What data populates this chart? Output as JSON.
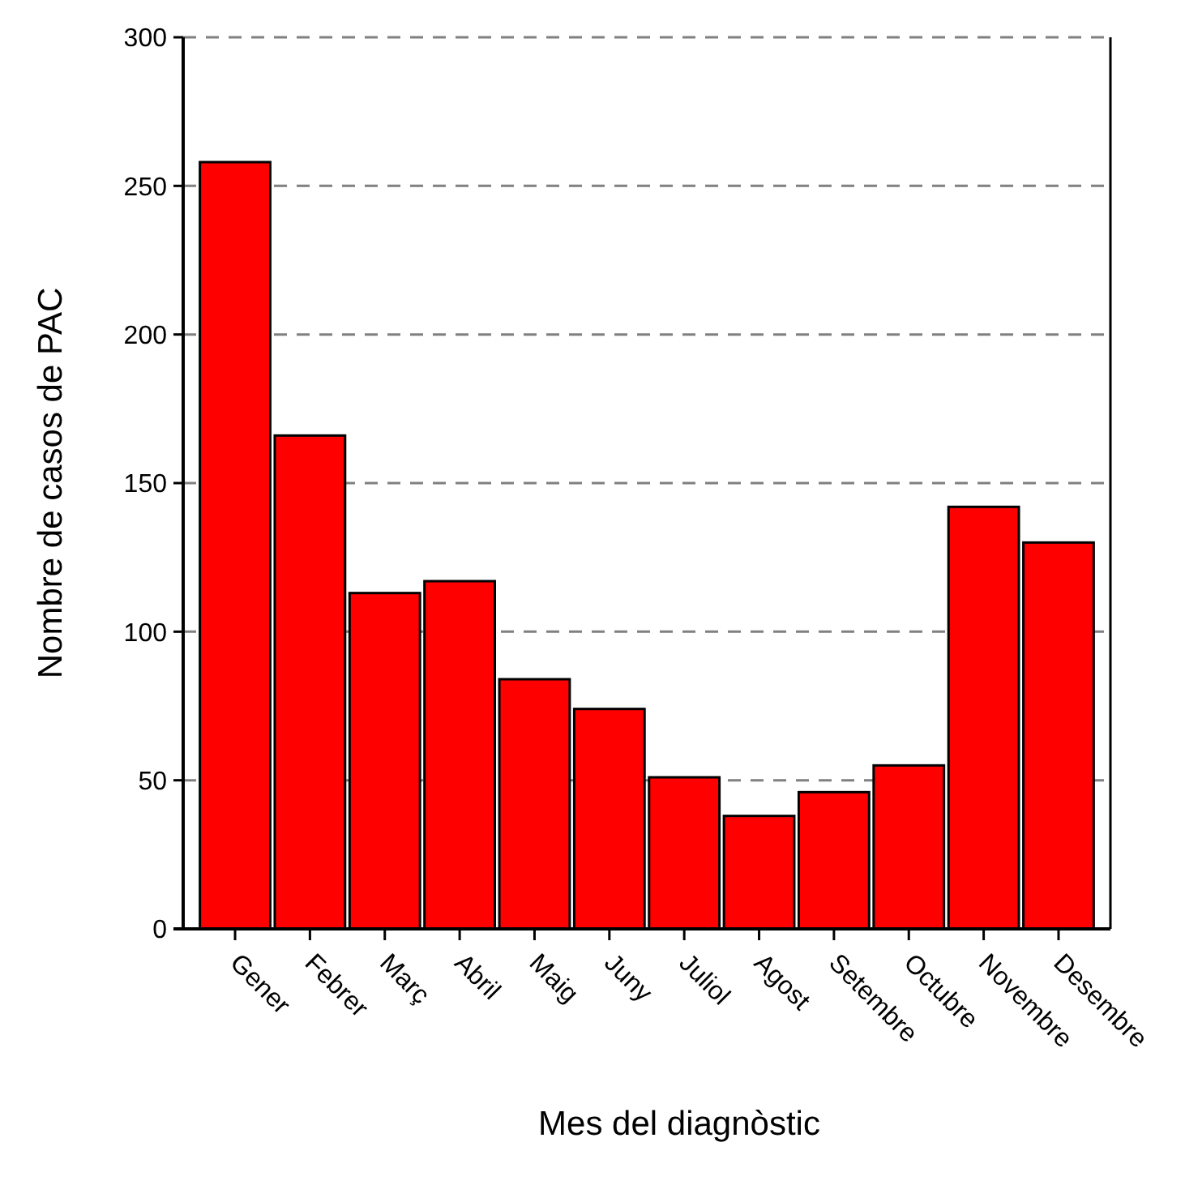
{
  "chart_data": {
    "type": "bar",
    "xlabel": "Mes del diagnòstic",
    "ylabel": "Nombre de casos de PAC",
    "categories": [
      "Gener",
      "Febrer",
      "Març",
      "Abril",
      "Maig",
      "Juny",
      "Juliol",
      "Agost",
      "Setembre",
      "Octubre",
      "Novembre",
      "Desembre"
    ],
    "values": [
      258,
      166,
      113,
      117,
      84,
      74,
      51,
      38,
      46,
      55,
      142,
      130
    ],
    "color": "#ff0000",
    "ylim": [
      0,
      300
    ],
    "yticks": [
      0,
      50,
      100,
      150,
      200,
      250,
      300
    ],
    "grid": "y"
  }
}
